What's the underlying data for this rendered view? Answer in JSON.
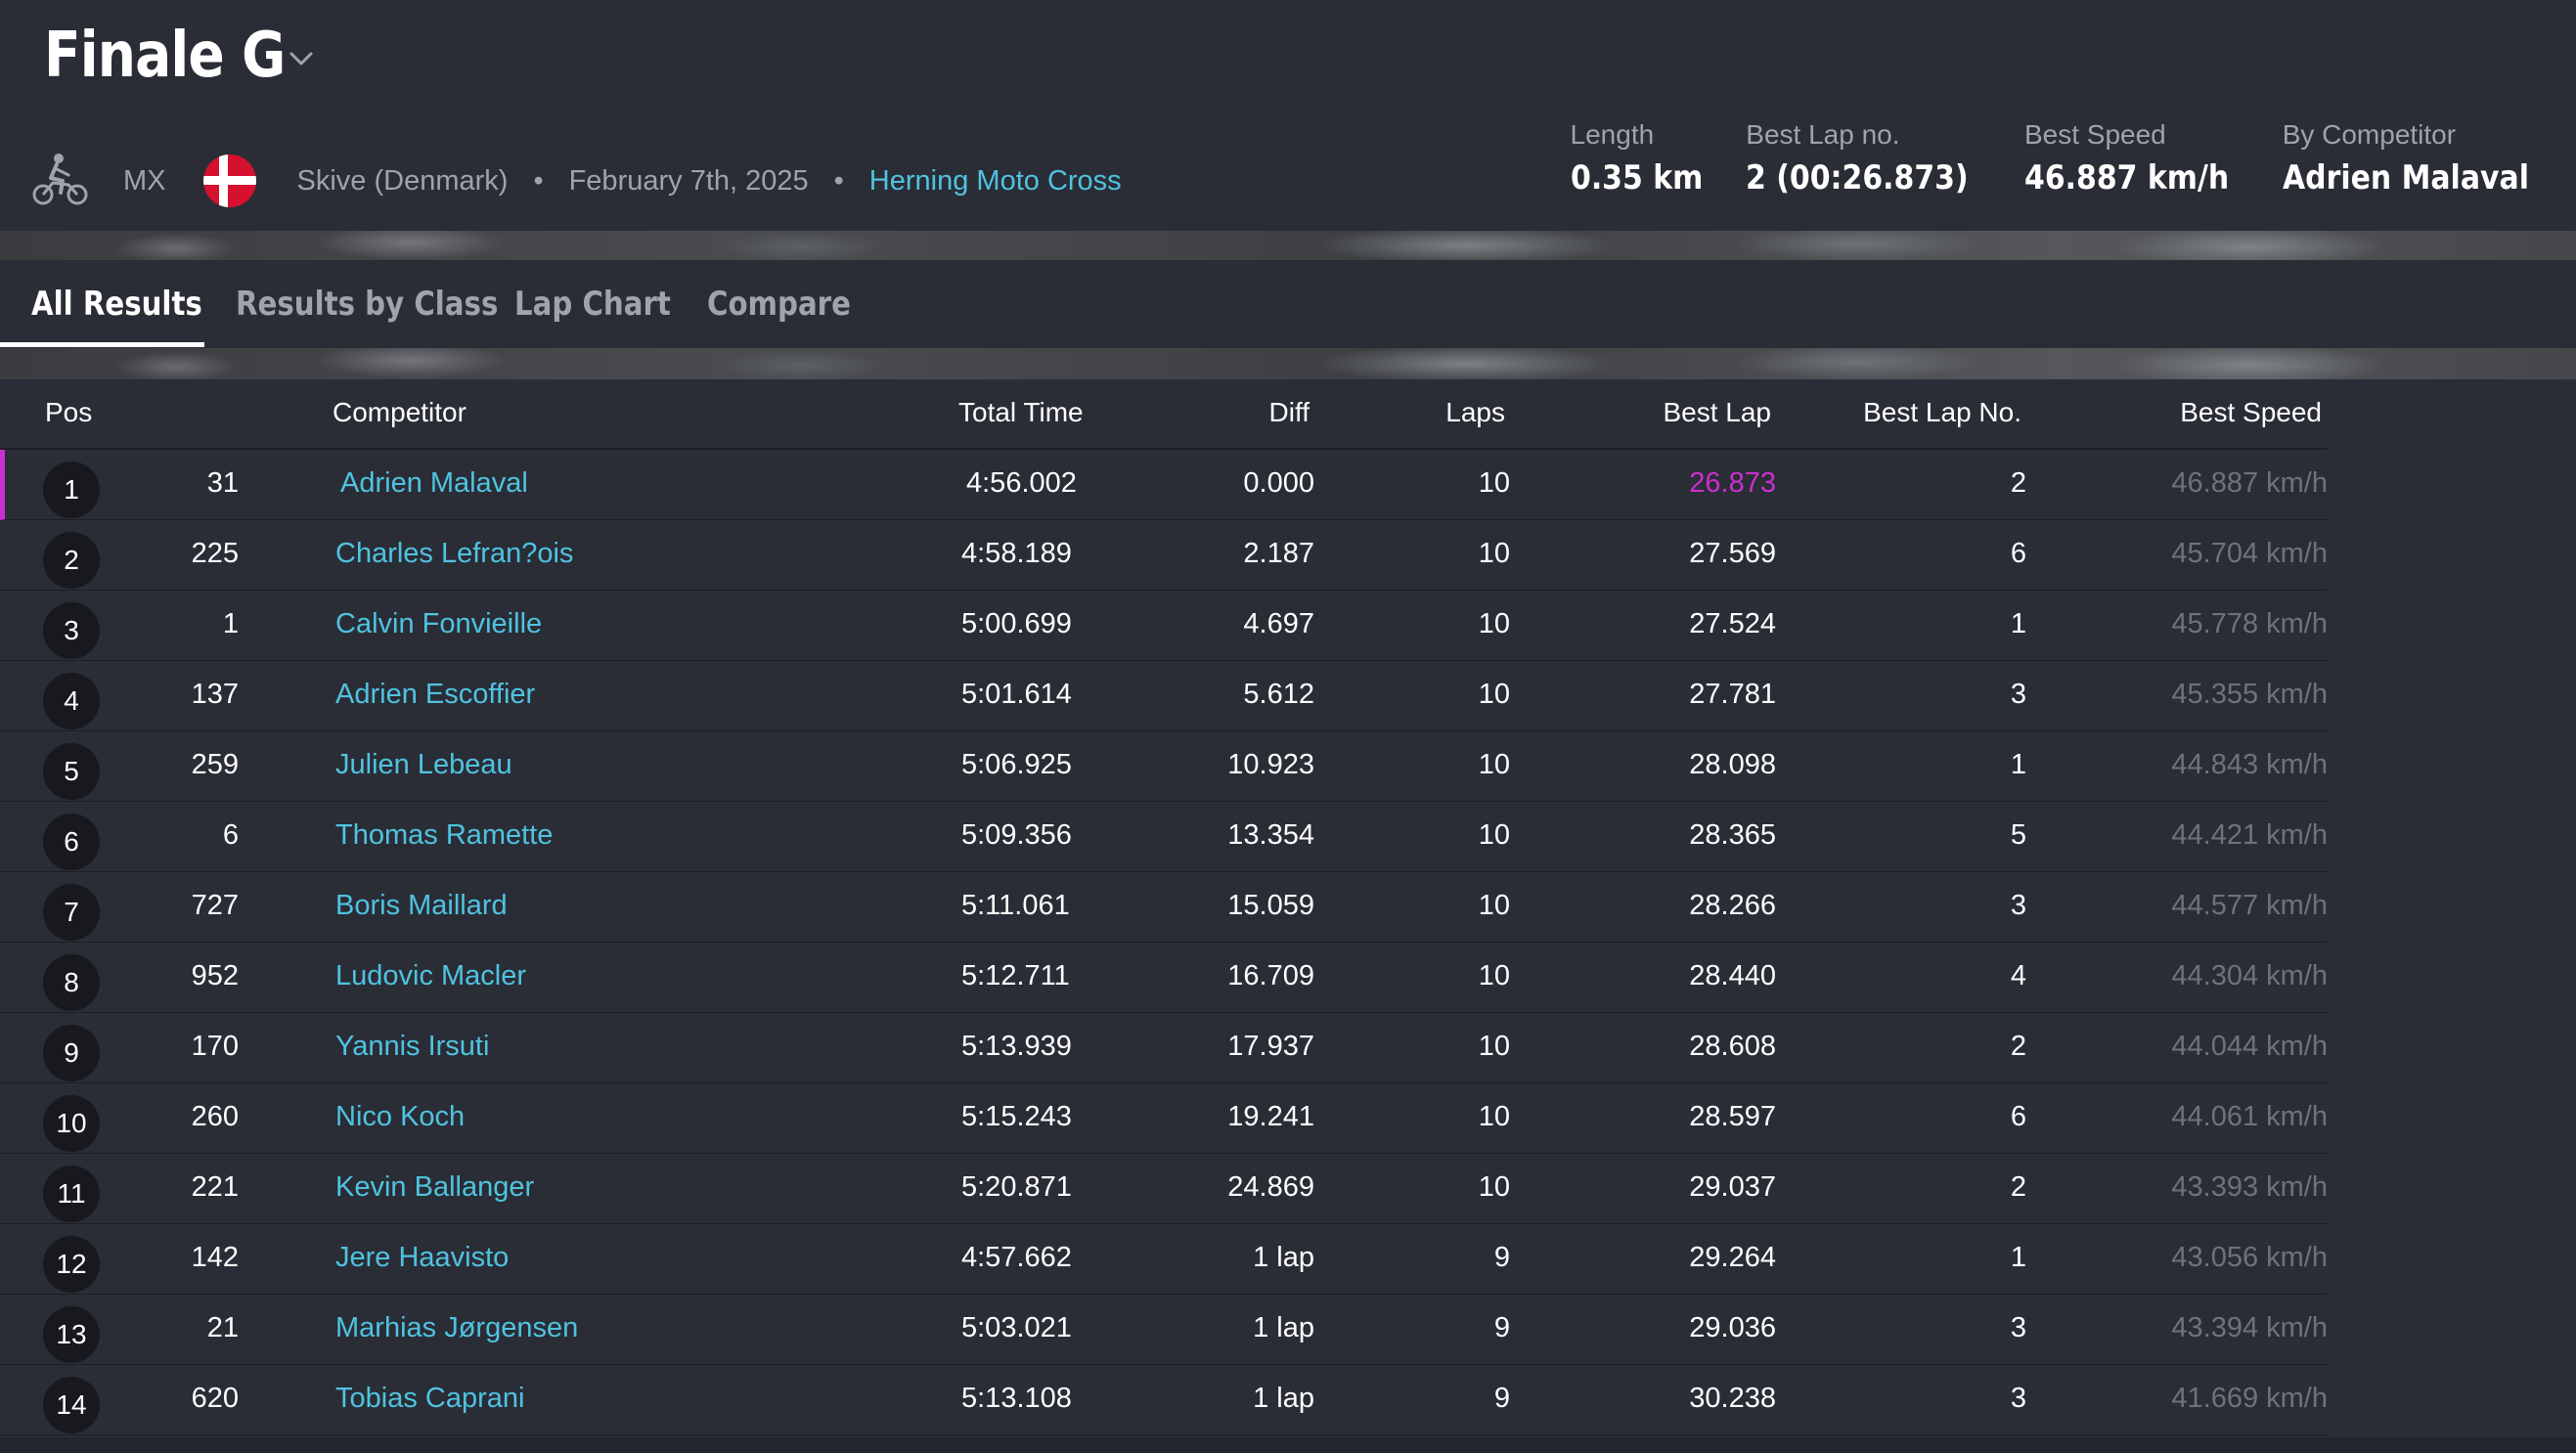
{
  "header": {
    "title": "Finale G",
    "sport": "MX",
    "location": "Skive (Denmark)",
    "date": "February 7th, 2025",
    "organizer": "Herning Moto Cross",
    "icons": {
      "bike": "motocross-bike-icon",
      "flag": "denmark-flag-icon",
      "chevron": "chevron-down-icon"
    }
  },
  "stats": {
    "length_label": "Length",
    "length_value": "0.35 km",
    "bestlap_label": "Best Lap no.",
    "bestlap_value": "2 (00:26.873)",
    "bestspeed_label": "Best Speed",
    "bestspeed_value": "46.887 km/h",
    "by_label": "By Competitor",
    "by_value": "Adrien Malaval"
  },
  "tabs": [
    "All Results",
    "Results by Class",
    "Lap Chart",
    "Compare"
  ],
  "table": {
    "headers": {
      "pos": "Pos",
      "competitor": "Competitor",
      "total": "Total Time",
      "diff": "Diff",
      "laps": "Laps",
      "best": "Best Lap",
      "bestno": "Best Lap No.",
      "speed": "Best Speed"
    },
    "rows": [
      {
        "pos": "1",
        "num": "31",
        "name": "Adrien Malaval",
        "total": "4:56.002",
        "diff": "0.000",
        "laps": "10",
        "best": "26.873",
        "bestno": "2",
        "speed": "46.887 km/h"
      },
      {
        "pos": "2",
        "num": "225",
        "name": "Charles Lefran?ois",
        "total": "4:58.189",
        "diff": "2.187",
        "laps": "10",
        "best": "27.569",
        "bestno": "6",
        "speed": "45.704 km/h"
      },
      {
        "pos": "3",
        "num": "1",
        "name": "Calvin Fonvieille",
        "total": "5:00.699",
        "diff": "4.697",
        "laps": "10",
        "best": "27.524",
        "bestno": "1",
        "speed": "45.778 km/h"
      },
      {
        "pos": "4",
        "num": "137",
        "name": "Adrien Escoffier",
        "total": "5:01.614",
        "diff": "5.612",
        "laps": "10",
        "best": "27.781",
        "bestno": "3",
        "speed": "45.355 km/h"
      },
      {
        "pos": "5",
        "num": "259",
        "name": "Julien Lebeau",
        "total": "5:06.925",
        "diff": "10.923",
        "laps": "10",
        "best": "28.098",
        "bestno": "1",
        "speed": "44.843 km/h"
      },
      {
        "pos": "6",
        "num": "6",
        "name": "Thomas Ramette",
        "total": "5:09.356",
        "diff": "13.354",
        "laps": "10",
        "best": "28.365",
        "bestno": "5",
        "speed": "44.421 km/h"
      },
      {
        "pos": "7",
        "num": "727",
        "name": "Boris Maillard",
        "total": "5:11.061",
        "diff": "15.059",
        "laps": "10",
        "best": "28.266",
        "bestno": "3",
        "speed": "44.577 km/h"
      },
      {
        "pos": "8",
        "num": "952",
        "name": "Ludovic Macler",
        "total": "5:12.711",
        "diff": "16.709",
        "laps": "10",
        "best": "28.440",
        "bestno": "4",
        "speed": "44.304 km/h"
      },
      {
        "pos": "9",
        "num": "170",
        "name": "Yannis Irsuti",
        "total": "5:13.939",
        "diff": "17.937",
        "laps": "10",
        "best": "28.608",
        "bestno": "2",
        "speed": "44.044 km/h"
      },
      {
        "pos": "10",
        "num": "260",
        "name": "Nico Koch",
        "total": "5:15.243",
        "diff": "19.241",
        "laps": "10",
        "best": "28.597",
        "bestno": "6",
        "speed": "44.061 km/h"
      },
      {
        "pos": "11",
        "num": "221",
        "name": "Kevin Ballanger",
        "total": "5:20.871",
        "diff": "24.869",
        "laps": "10",
        "best": "29.037",
        "bestno": "2",
        "speed": "43.393 km/h"
      },
      {
        "pos": "12",
        "num": "142",
        "name": "Jere Haavisto",
        "total": "4:57.662",
        "diff": "1 lap",
        "laps": "9",
        "best": "29.264",
        "bestno": "1",
        "speed": "43.056 km/h"
      },
      {
        "pos": "13",
        "num": "21",
        "name": "Marhias Jørgensen",
        "total": "5:03.021",
        "diff": "1 lap",
        "laps": "9",
        "best": "29.036",
        "bestno": "3",
        "speed": "43.394 km/h"
      },
      {
        "pos": "14",
        "num": "620",
        "name": "Tobias Caprani",
        "total": "5:13.108",
        "diff": "1 lap",
        "laps": "9",
        "best": "30.238",
        "bestno": "3",
        "speed": "41.669 km/h"
      }
    ]
  },
  "colors": {
    "background": "#2a2d36",
    "link": "#4fc3e0",
    "best_lap_highlight": "#cc2fd1",
    "muted": "#9fa3ad",
    "speed_text": "#6e727c",
    "pos_badge": "#17191e"
  }
}
